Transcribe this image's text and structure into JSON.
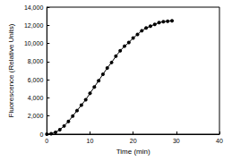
{
  "chart_data": {
    "type": "line",
    "x_label": "Time (min)",
    "y_label": "Fluorescence (Relative Units)",
    "x": [
      0,
      1,
      2,
      3,
      4,
      5,
      6,
      7,
      8,
      9,
      10,
      11,
      12,
      13,
      14,
      15,
      16,
      17,
      18,
      19,
      20,
      21,
      22,
      23,
      24,
      25,
      26,
      27,
      28,
      29
    ],
    "values": [
      0,
      50,
      200,
      500,
      900,
      1400,
      2000,
      2600,
      3200,
      3800,
      4500,
      5200,
      5900,
      6600,
      7300,
      7900,
      8600,
      9200,
      9700,
      10100,
      10600,
      11000,
      11400,
      11700,
      11900,
      12100,
      12300,
      12400,
      12450,
      12500
    ],
    "color": "#000000",
    "marker": "circle",
    "line_style": "solid",
    "grid": false,
    "xlim": [
      0,
      40
    ],
    "xticks": [
      0,
      10,
      20,
      30,
      40
    ],
    "ylim": [
      0,
      14000
    ],
    "yticks": [
      0,
      {
        "value": 2000,
        "label": "2,000"
      },
      {
        "value": 4000,
        "label": "4,000"
      },
      {
        "value": 6000,
        "label": "6,000"
      },
      {
        "value": 8000,
        "label": "8,000"
      },
      {
        "value": 10000,
        "label": "10,000"
      },
      {
        "value": 12000,
        "label": "12,000"
      },
      {
        "value": 14000,
        "label": "14,000"
      }
    ]
  }
}
